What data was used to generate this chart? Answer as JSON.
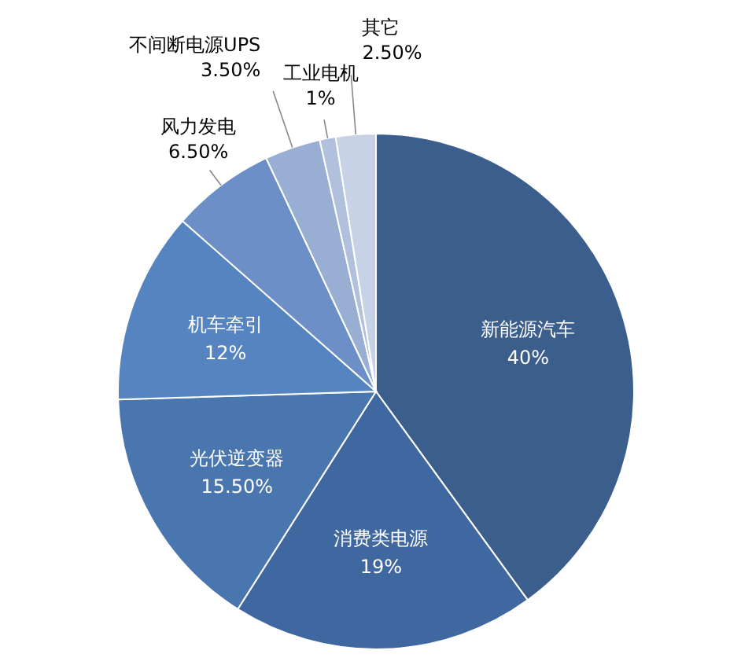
{
  "chart_data": {
    "type": "pie",
    "categories": [
      "新能源汽车",
      "消费类电源",
      "光伏逆变器",
      "机车牵引",
      "风力发电",
      "不间断电源UPS",
      "工业电机",
      "其它"
    ],
    "values": [
      40,
      19,
      15.5,
      12,
      6.5,
      3.5,
      1,
      2.5
    ],
    "value_labels": [
      "40%",
      "19%",
      "15.50%",
      "12%",
      "6.50%",
      "3.50%",
      "1%",
      "2.50%"
    ],
    "colors": [
      "#3b5e8c",
      "#3f67a0",
      "#4a76b0",
      "#5584c0",
      "#6b8fc6",
      "#98aed3",
      "#b0c0dd",
      "#c8d2e6"
    ]
  }
}
